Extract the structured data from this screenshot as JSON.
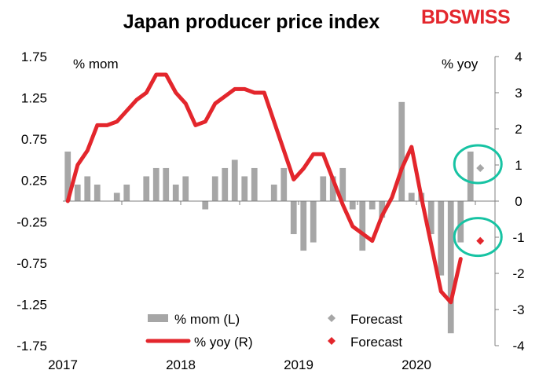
{
  "chart_data": {
    "type": "bar+line",
    "title": "Japan producer price index",
    "brand": "BDSWISS",
    "left_axis": {
      "unit_label": "% mom",
      "ylim": [
        -1.75,
        1.75
      ],
      "ticks": [
        "1.75",
        "1.25",
        "0.75",
        "0.25",
        "-0.25",
        "-0.75",
        "-1.25",
        "-1.75"
      ]
    },
    "right_axis": {
      "unit_label": "% yoy",
      "ylim": [
        -4,
        4
      ],
      "ticks": [
        "4",
        "3",
        "2",
        "1",
        "0",
        "-1",
        "-2",
        "-3",
        "-4"
      ]
    },
    "x_ticks": [
      "2017",
      "2018",
      "2019",
      "2020"
    ],
    "months": [
      "2017-01",
      "2017-02",
      "2017-03",
      "2017-04",
      "2017-05",
      "2017-06",
      "2017-07",
      "2017-08",
      "2017-09",
      "2017-10",
      "2017-11",
      "2017-12",
      "2018-01",
      "2018-02",
      "2018-03",
      "2018-04",
      "2018-05",
      "2018-06",
      "2018-07",
      "2018-08",
      "2018-09",
      "2018-10",
      "2018-11",
      "2018-12",
      "2019-01",
      "2019-02",
      "2019-03",
      "2019-04",
      "2019-05",
      "2019-06",
      "2019-07",
      "2019-08",
      "2019-09",
      "2019-10",
      "2019-11",
      "2019-12",
      "2020-01",
      "2020-02",
      "2020-03",
      "2020-04",
      "2020-05",
      "2020-06",
      "2020-07"
    ],
    "series": [
      {
        "name": "% mom (L)",
        "kind": "bar",
        "axis": "left",
        "color": "#a6a6a6",
        "values": [
          0.6,
          0.2,
          0.3,
          0.2,
          0.0,
          0.1,
          0.2,
          0.0,
          0.3,
          0.4,
          0.4,
          0.2,
          0.3,
          0.0,
          -0.1,
          0.3,
          0.4,
          0.5,
          0.3,
          0.4,
          0.0,
          0.2,
          0.4,
          -0.4,
          -0.6,
          -0.5,
          0.3,
          0.3,
          0.4,
          -0.1,
          -0.6,
          -0.1,
          -0.2,
          0.0,
          1.2,
          0.1,
          0.1,
          -0.4,
          -0.9,
          -1.6,
          -0.5,
          0.6,
          null
        ]
      },
      {
        "name": "% yoy (R)",
        "kind": "line",
        "axis": "right",
        "color": "#e3262c",
        "values": [
          0.0,
          1.0,
          1.4,
          2.1,
          2.1,
          2.2,
          2.5,
          2.8,
          3.0,
          3.5,
          3.5,
          3.0,
          2.7,
          2.1,
          2.2,
          2.7,
          2.9,
          3.1,
          3.1,
          3.0,
          3.0,
          2.2,
          1.4,
          0.6,
          0.9,
          1.3,
          1.3,
          0.6,
          -0.1,
          -0.7,
          -0.9,
          -1.1,
          -0.4,
          0.1,
          0.9,
          1.5,
          0.1,
          -1.2,
          -2.5,
          -2.8,
          -1.6,
          null,
          null
        ]
      },
      {
        "name": "Forecast",
        "kind": "marker",
        "axis": "left",
        "color": "#a6a6a6",
        "month": "2020-07",
        "value": 0.4
      },
      {
        "name": "Forecast",
        "kind": "marker",
        "axis": "right",
        "color": "#e3262c",
        "month": "2020-07",
        "value": -1.1
      }
    ],
    "highlight_color": "#17c3a3",
    "legend_placement": "bottom-center",
    "grid": false
  }
}
